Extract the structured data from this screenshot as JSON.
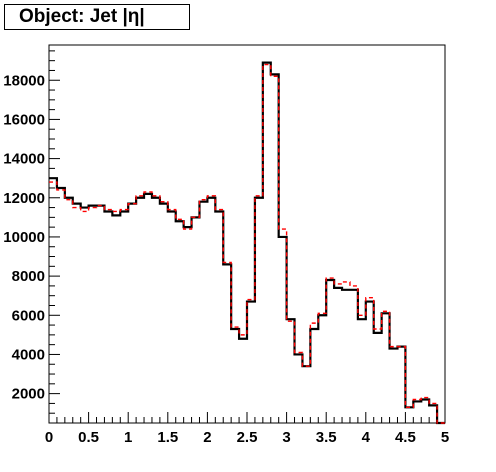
{
  "chart_data": {
    "type": "histogram",
    "title": "Object: Jet |η|",
    "xlabel": "",
    "ylabel": "",
    "xlim": [
      0,
      5
    ],
    "ylim": [
      500,
      19800
    ],
    "x_ticks": [
      "0",
      "0.5",
      "1",
      "1.5",
      "2",
      "2.5",
      "3",
      "3.5",
      "4",
      "4.5",
      "5"
    ],
    "y_ticks": [
      "2000",
      "4000",
      "6000",
      "8000",
      "10000",
      "12000",
      "14000",
      "16000",
      "18000"
    ],
    "bin_edges": [
      0,
      0.1,
      0.2,
      0.3,
      0.4,
      0.5,
      0.6,
      0.7,
      0.8,
      0.9,
      1.0,
      1.1,
      1.2,
      1.3,
      1.4,
      1.5,
      1.6,
      1.7,
      1.8,
      1.9,
      2.0,
      2.1,
      2.2,
      2.3,
      2.4,
      2.5,
      2.6,
      2.7,
      2.8,
      2.9,
      3.0,
      3.1,
      3.2,
      3.3,
      3.4,
      3.5,
      3.6,
      3.7,
      3.8,
      3.9,
      4.0,
      4.1,
      4.2,
      4.3,
      4.4,
      4.5,
      4.6,
      4.7,
      4.8,
      4.9,
      5.0
    ],
    "series": [
      {
        "color": "#000000",
        "style": "solid",
        "values": [
          13000,
          12500,
          12000,
          11700,
          11500,
          11600,
          11600,
          11300,
          11100,
          11300,
          11700,
          12000,
          12200,
          12000,
          11700,
          11300,
          10800,
          10500,
          11000,
          11800,
          12000,
          11300,
          8600,
          5300,
          4800,
          6700,
          12000,
          18900,
          18300,
          10000,
          5800,
          4000,
          3400,
          5300,
          6000,
          7800,
          7400,
          7300,
          7300,
          5800,
          6700,
          5100,
          6100,
          4300,
          4400,
          1300,
          1600,
          1700,
          1400,
          0
        ]
      },
      {
        "color": "#ff0000",
        "style": "dashed",
        "values": [
          12800,
          12400,
          11900,
          11500,
          11300,
          11500,
          11600,
          11400,
          11300,
          11400,
          11700,
          12100,
          12300,
          12100,
          11800,
          11400,
          10900,
          10400,
          11000,
          11900,
          12100,
          11400,
          8700,
          5400,
          5000,
          6800,
          12100,
          18800,
          18200,
          10400,
          5700,
          4100,
          3400,
          5600,
          6100,
          7900,
          7600,
          7700,
          7500,
          6000,
          6900,
          5300,
          6200,
          4400,
          4400,
          1300,
          1700,
          1800,
          1500,
          0
        ]
      }
    ]
  }
}
